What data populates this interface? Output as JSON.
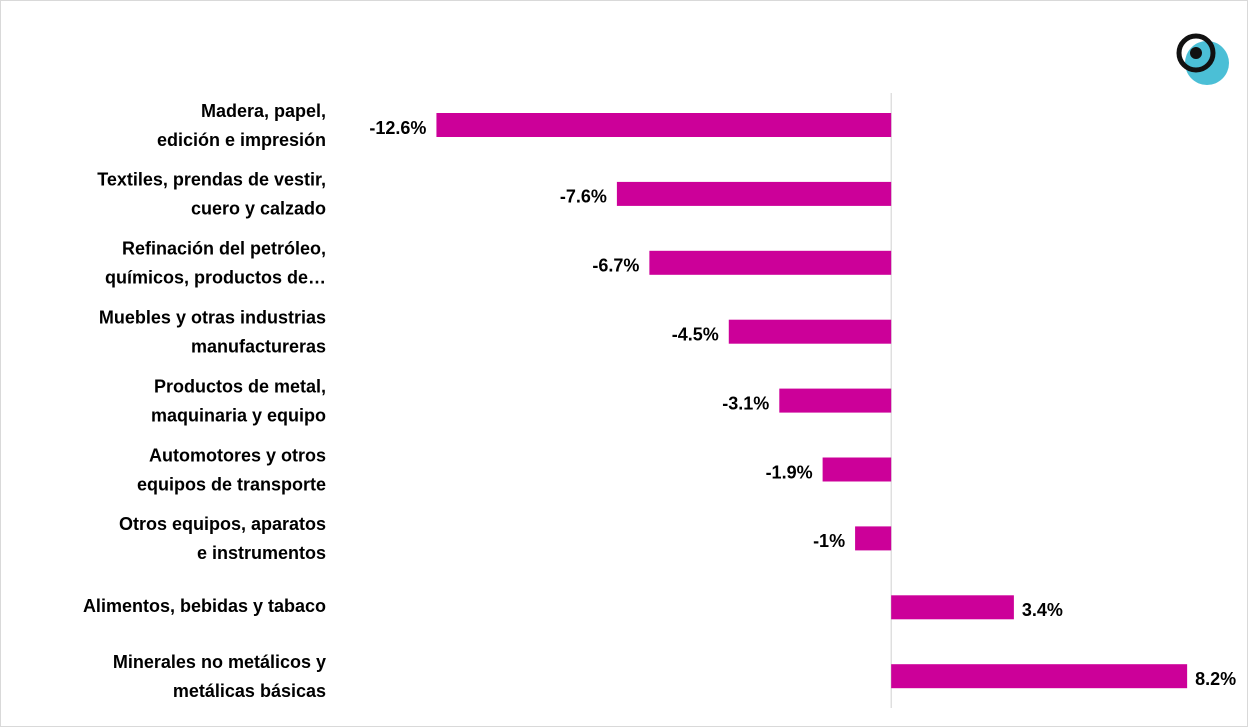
{
  "chart_data": {
    "type": "bar",
    "orientation": "horizontal",
    "categories": [
      [
        "Madera, papel,",
        "edición e impresión"
      ],
      [
        "Textiles, prendas de vestir,",
        "cuero y calzado"
      ],
      [
        "Refinación del petróleo,",
        "químicos, productos de…"
      ],
      [
        "Muebles y otras industrias",
        "manufactureras"
      ],
      [
        "Productos de metal,",
        "maquinaria y equipo"
      ],
      [
        "Automotores y otros",
        "equipos de transporte"
      ],
      [
        "Otros equipos, aparatos",
        "e instrumentos"
      ],
      [
        "Alimentos, bebidas y tabaco"
      ],
      [
        "Minerales no metálicos y",
        "metálicas básicas"
      ]
    ],
    "values": [
      -12.6,
      -7.6,
      -6.7,
      -4.5,
      -3.1,
      -1.9,
      -1,
      3.4,
      8.2
    ],
    "value_labels": [
      "-12.6%",
      "-7.6%",
      "-6.7%",
      "-4.5%",
      "-3.1%",
      "-1.9%",
      "-1%",
      "3.4%",
      "8.2%"
    ],
    "color": "#cc0099",
    "xlim": [
      -13,
      9
    ]
  }
}
